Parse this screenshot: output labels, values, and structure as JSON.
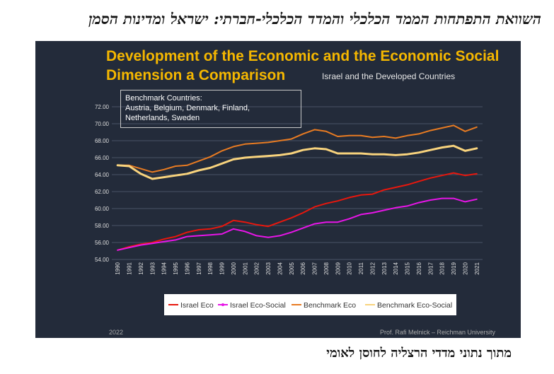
{
  "hebrew_title": "השוואת התפתחות הממד הכלכלי והמדד הכלכלי-חברתי: ישראל ומדינות הסמן",
  "hebrew_footer": "מתוך נתוני מדדי הרצליה לחוסן לאומי",
  "slide": {
    "title_line1": "Development of the Economic and the Economic Social",
    "title_line2": "Dimension a Comparison",
    "subtitle": "Israel and the Developed Countries",
    "benchmark_box": {
      "line1": "Benchmark Countries:",
      "line2": "Austria, Belgium, Denmark, Finland,",
      "line3": "Netherlands, Sweden"
    },
    "footer_year": "2022",
    "footer_credit": "Prof. Rafi Melnick – Reichman University"
  },
  "chart_data": {
    "type": "line",
    "x": [
      "1990",
      "1991",
      "1992",
      "1993",
      "1994",
      "1995",
      "1996",
      "1997",
      "1998",
      "1999",
      "2000",
      "2001",
      "2002",
      "2003",
      "2004",
      "2005",
      "2006",
      "2007",
      "2008",
      "2009",
      "2010",
      "2011",
      "2012",
      "2013",
      "2014",
      "2015",
      "2016",
      "2017",
      "2018",
      "2019",
      "2020",
      "2021"
    ],
    "ylim": [
      54,
      72
    ],
    "yticks": [
      "54.00",
      "56.00",
      "58.00",
      "60.00",
      "62.00",
      "64.00",
      "66.00",
      "68.00",
      "70.00",
      "72.00"
    ],
    "grid": true,
    "legend_position": "bottom",
    "series": [
      {
        "name": "Israel Eco",
        "color": "#e8170d",
        "width": 2,
        "values": [
          55.1,
          55.5,
          55.8,
          56.0,
          56.4,
          56.7,
          57.2,
          57.5,
          57.6,
          57.9,
          58.6,
          58.4,
          58.1,
          57.9,
          58.4,
          58.9,
          59.5,
          60.2,
          60.6,
          60.9,
          61.3,
          61.6,
          61.7,
          62.2,
          62.5,
          62.8,
          63.2,
          63.6,
          63.9,
          64.2,
          63.9,
          64.1
        ]
      },
      {
        "name": "Israel Eco-Social",
        "color": "#e815e8",
        "width": 2,
        "values": [
          55.1,
          55.4,
          55.7,
          55.9,
          56.1,
          56.3,
          56.7,
          56.8,
          56.9,
          57.0,
          57.6,
          57.3,
          56.8,
          56.6,
          56.8,
          57.2,
          57.7,
          58.2,
          58.4,
          58.4,
          58.8,
          59.3,
          59.5,
          59.8,
          60.1,
          60.3,
          60.7,
          61.0,
          61.2,
          61.2,
          60.8,
          61.1
        ]
      },
      {
        "name": "Benchmark Eco",
        "color": "#e87b22",
        "width": 2,
        "values": [
          65.1,
          65.1,
          64.7,
          64.3,
          64.6,
          65.0,
          65.1,
          65.6,
          66.1,
          66.8,
          67.3,
          67.6,
          67.7,
          67.8,
          68.0,
          68.2,
          68.8,
          69.3,
          69.1,
          68.5,
          68.6,
          68.6,
          68.4,
          68.5,
          68.3,
          68.6,
          68.8,
          69.2,
          69.5,
          69.8,
          69.1,
          69.6
        ]
      },
      {
        "name": "Benchmark Eco-Social",
        "color": "#f8d37d",
        "width": 3,
        "values": [
          65.1,
          65.0,
          64.1,
          63.5,
          63.7,
          63.9,
          64.1,
          64.5,
          64.8,
          65.3,
          65.8,
          66.0,
          66.1,
          66.2,
          66.3,
          66.5,
          66.9,
          67.1,
          67.0,
          66.5,
          66.5,
          66.5,
          66.4,
          66.4,
          66.3,
          66.4,
          66.6,
          66.9,
          67.2,
          67.4,
          66.8,
          67.1
        ]
      }
    ]
  }
}
